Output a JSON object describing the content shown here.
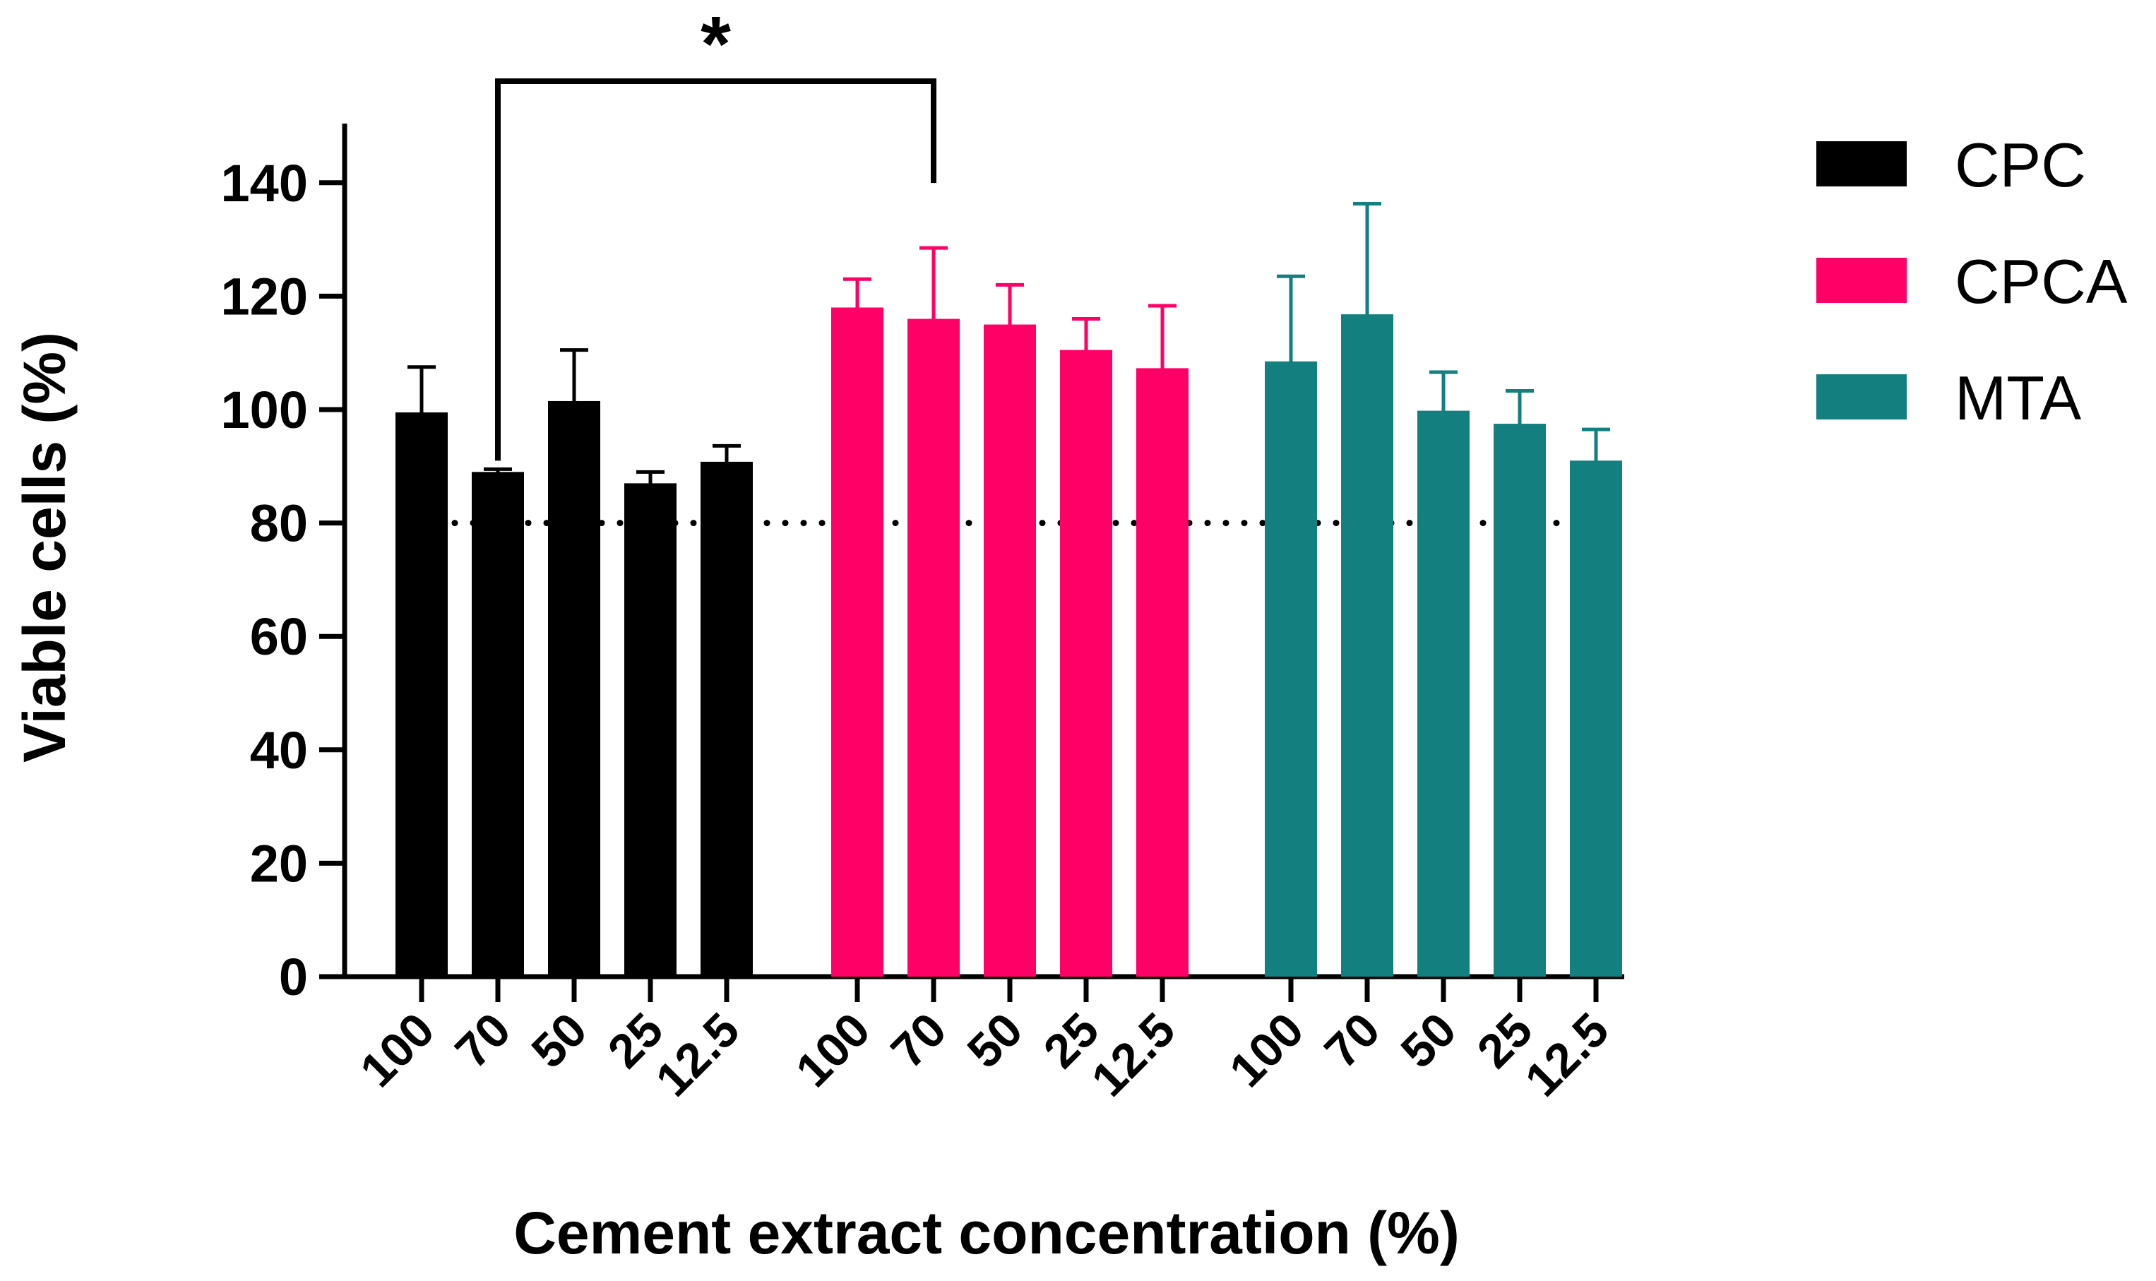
{
  "chart_data": {
    "type": "bar",
    "title": "",
    "xlabel": "Cement extract concentration (%)",
    "ylabel": "Viable cells (%)",
    "ylim": [
      0,
      150
    ],
    "yticks": [
      0,
      20,
      40,
      60,
      80,
      100,
      120,
      140
    ],
    "reference_line": {
      "value": 80,
      "style": "dotted"
    },
    "categories": [
      "100",
      "70",
      "50",
      "25",
      "12.5"
    ],
    "series": [
      {
        "name": "CPC",
        "color": "#000000",
        "values": [
          99.5,
          89.0,
          101.5,
          87.0,
          90.8
        ],
        "errors": [
          8.0,
          0.5,
          9.0,
          2.0,
          2.8
        ]
      },
      {
        "name": "CPCA",
        "color": "#ff0066",
        "values": [
          118.0,
          116.0,
          115.0,
          110.5,
          107.3
        ],
        "errors": [
          5.0,
          12.5,
          7.0,
          5.5,
          11.0
        ]
      },
      {
        "name": "MTA",
        "color": "#137f7f",
        "values": [
          108.5,
          116.8,
          99.8,
          97.5,
          91.0
        ],
        "errors": [
          15.0,
          19.5,
          6.8,
          5.8,
          5.5
        ]
      }
    ],
    "legend": {
      "position": "right"
    },
    "annotations": [
      {
        "type": "significance",
        "label": "*",
        "from": {
          "series": "CPC",
          "category": "70"
        },
        "to": {
          "series": "CPCA",
          "category": "70"
        }
      }
    ]
  }
}
